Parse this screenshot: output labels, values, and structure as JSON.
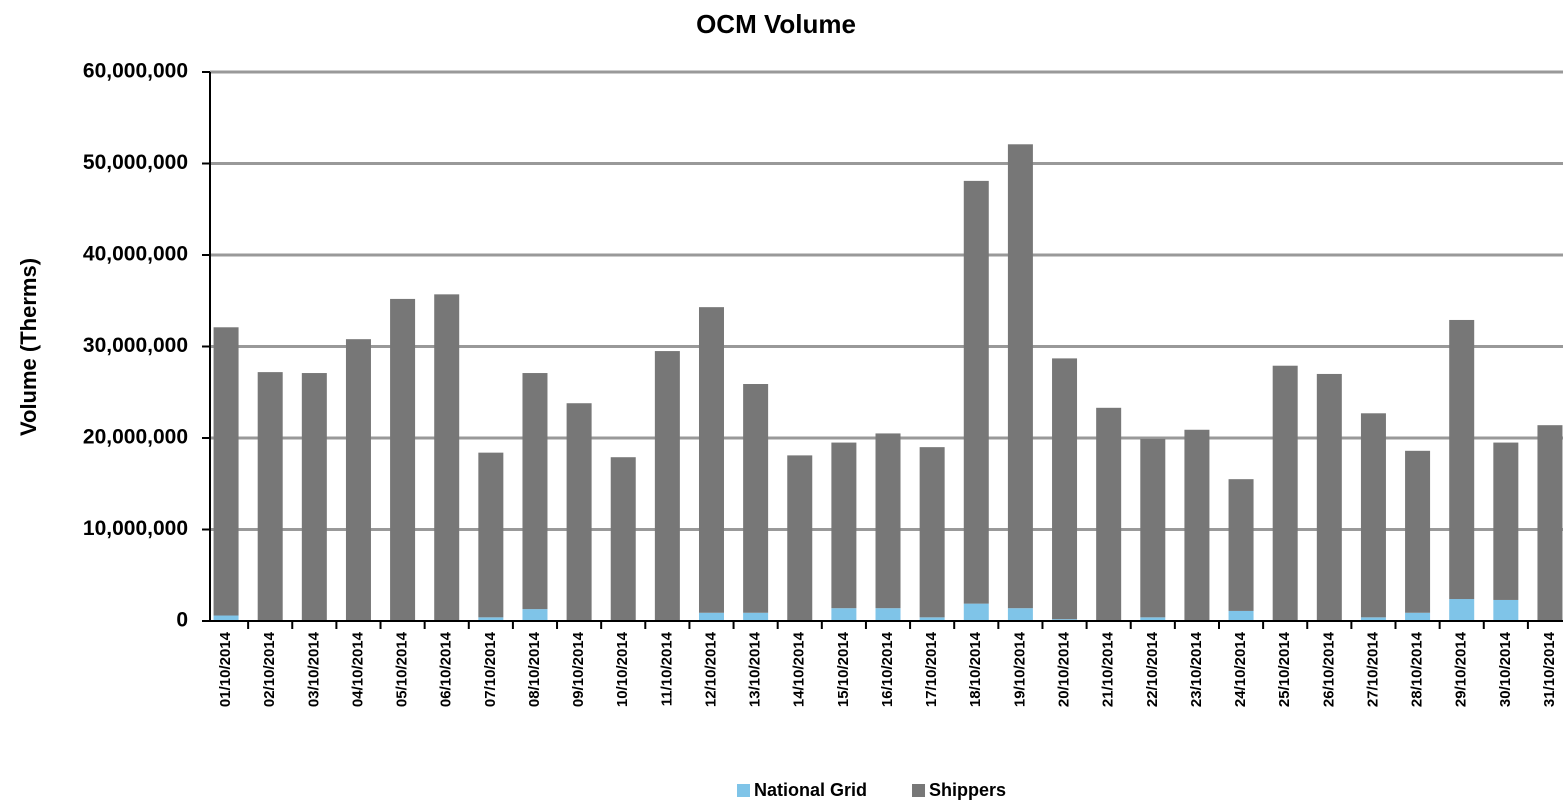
{
  "chart_data": {
    "type": "stacked_bar",
    "title": "OCM Volume",
    "y_label": "Volume (Therms)",
    "categories": [
      "01/10/2014",
      "02/10/2014",
      "03/10/2014",
      "04/10/2014",
      "05/10/2014",
      "06/10/2014",
      "07/10/2014",
      "08/10/2014",
      "09/10/2014",
      "10/10/2014",
      "11/10/2014",
      "12/10/2014",
      "13/10/2014",
      "14/10/2014",
      "15/10/2014",
      "16/10/2014",
      "17/10/2014",
      "18/10/2014",
      "19/10/2014",
      "20/10/2014",
      "21/10/2014",
      "22/10/2014",
      "23/10/2014",
      "24/10/2014",
      "25/10/2014",
      "26/10/2014",
      "27/10/2014",
      "28/10/2014",
      "29/10/2014",
      "30/10/2014",
      "31/10/2014"
    ],
    "series": [
      {
        "name": "National Grid",
        "color": "#7fc4e8",
        "values": [
          600000,
          0,
          0,
          0,
          0,
          0,
          400000,
          1300000,
          0,
          0,
          0,
          900000,
          900000,
          0,
          1400000,
          1400000,
          400000,
          1900000,
          1400000,
          200000,
          0,
          400000,
          0,
          1100000,
          0,
          0,
          400000,
          900000,
          2400000,
          2300000,
          0
        ]
      },
      {
        "name": "Shippers",
        "color": "#777777",
        "values": [
          31500000,
          27200000,
          27100000,
          30800000,
          35200000,
          35700000,
          18000000,
          25800000,
          23800000,
          17900000,
          29500000,
          33400000,
          25000000,
          18100000,
          18100000,
          19100000,
          18600000,
          46200000,
          50700000,
          28500000,
          23300000,
          19500000,
          20900000,
          14400000,
          27900000,
          27000000,
          22300000,
          17700000,
          30500000,
          17200000,
          21400000
        ]
      }
    ],
    "ylim": [
      0,
      60000000
    ],
    "yticks": [
      0,
      {
        "value": 10000000,
        "label": "10,000,000"
      },
      {
        "value": 20000000,
        "label": "20,000,000"
      },
      {
        "value": 30000000,
        "label": "30,000,000"
      },
      {
        "value": 40000000,
        "label": "40,000,000"
      },
      {
        "value": 50000000,
        "label": "50,000,000"
      },
      {
        "value": 60000000,
        "label": "60,000,000"
      }
    ],
    "grid": true,
    "legend": "bottom"
  }
}
